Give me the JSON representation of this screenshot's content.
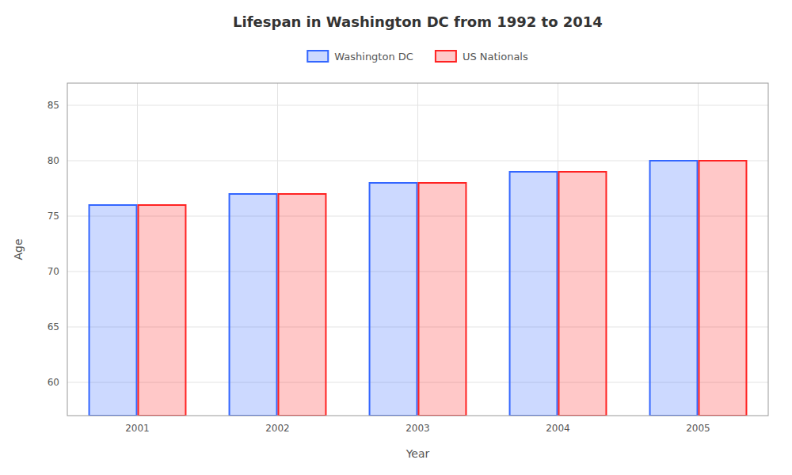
{
  "chart_data": {
    "type": "bar",
    "title": "Lifespan in Washington DC from 1992 to 2014",
    "x_label": "Year",
    "y_label": "Age",
    "categories": [
      "2001",
      "2002",
      "2003",
      "2004",
      "2005"
    ],
    "series": [
      {
        "name": "Washington DC",
        "color": "#3366ff",
        "values": [
          76,
          77,
          78,
          79,
          80
        ]
      },
      {
        "name": "US Nationals",
        "color": "#ff2222",
        "values": [
          76,
          77,
          78,
          79,
          80
        ]
      }
    ],
    "ylim": [
      57,
      87
    ],
    "yticks": [
      60,
      65,
      70,
      75,
      80,
      85
    ],
    "grid": true,
    "legend": "top"
  }
}
